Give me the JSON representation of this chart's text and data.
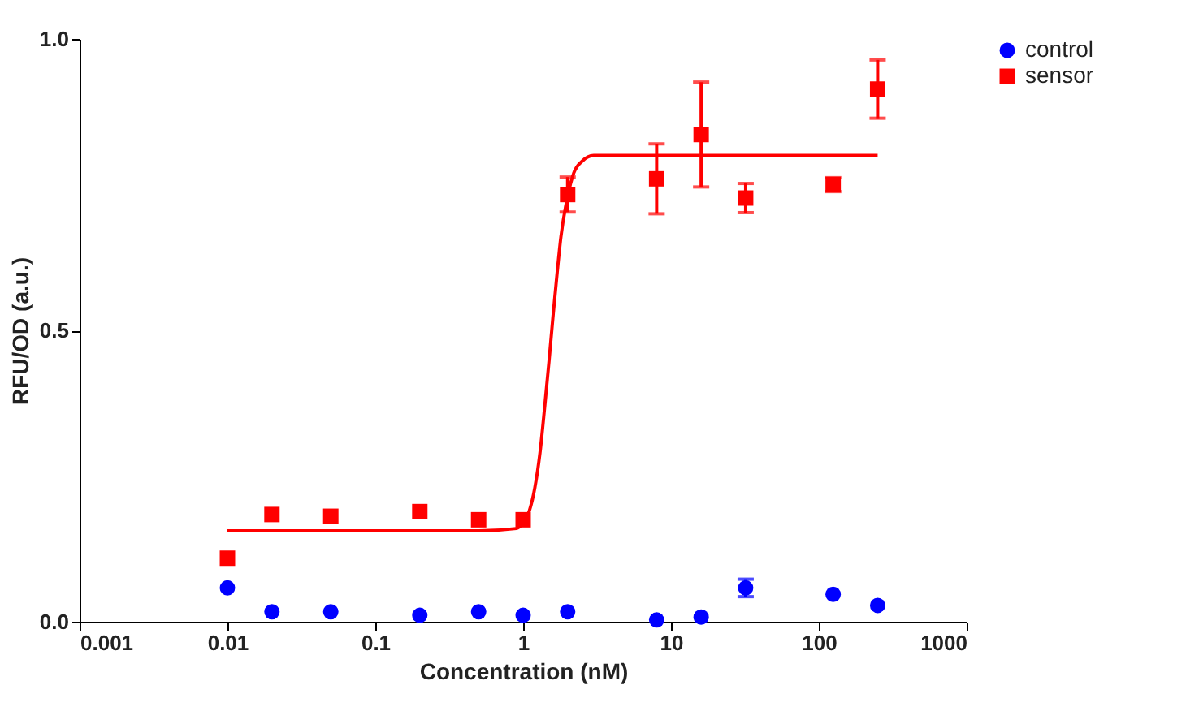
{
  "chart_data": {
    "type": "scatter",
    "xlabel": "Concentration (nM)",
    "ylabel": "RFU/OD (a.u.)",
    "log": "x",
    "xlim": [
      0.001,
      1000
    ],
    "xticks": [
      0.001,
      0.01,
      0.1,
      1,
      10,
      100,
      1000
    ],
    "ylim": [
      0,
      1
    ],
    "yticks": [
      {
        "value": 0,
        "label": "0.0"
      },
      {
        "value": 0.5,
        "label": "0.5"
      },
      {
        "value": 1,
        "label": "1.0"
      }
    ],
    "grid": false,
    "legend": "right",
    "series": [
      {
        "name": "control",
        "color": "#0000ff",
        "marker": "circle",
        "x": [
          0.01,
          0.02,
          0.05,
          0.2,
          0.5,
          1,
          2,
          8,
          16,
          32,
          125,
          250
        ],
        "values": [
          0.058,
          0.017,
          0.017,
          0.011,
          0.017,
          0.011,
          0.017,
          0.003,
          0.008,
          0.058,
          0.047,
          0.028
        ],
        "errors": [
          null,
          null,
          null,
          null,
          null,
          null,
          null,
          null,
          null,
          0.015,
          null,
          null
        ]
      },
      {
        "name": "sensor",
        "color": "#ff0000",
        "marker": "square",
        "x": [
          0.01,
          0.02,
          0.05,
          0.2,
          0.5,
          1,
          2,
          8,
          16,
          32,
          125,
          250
        ],
        "values": [
          0.109,
          0.184,
          0.181,
          0.189,
          0.175,
          0.175,
          0.733,
          0.76,
          0.836,
          0.727,
          0.75,
          0.914
        ],
        "errors": [
          null,
          null,
          null,
          null,
          null,
          null,
          0.03,
          0.06,
          0.09,
          0.025,
          0.012,
          0.05
        ]
      },
      {
        "type": "line",
        "color": "#ff0000",
        "x": [
          0.01,
          0.5,
          0.9,
          1.0,
          1.1,
          1.2,
          1.3,
          1.4,
          1.5,
          1.6,
          1.7,
          1.8,
          2.0,
          2.2,
          2.5,
          3,
          250
        ],
        "values": [
          0.156,
          0.156,
          0.16,
          0.17,
          0.19,
          0.23,
          0.29,
          0.37,
          0.45,
          0.53,
          0.6,
          0.66,
          0.73,
          0.77,
          0.79,
          0.8,
          0.8
        ]
      }
    ]
  }
}
